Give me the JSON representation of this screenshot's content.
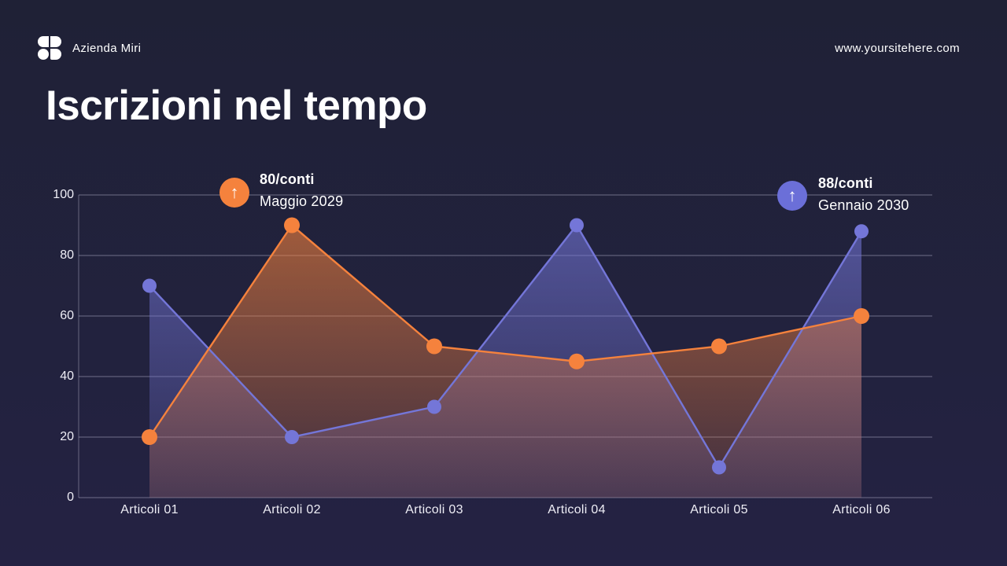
{
  "header": {
    "brand": "Azienda Miri",
    "website": "www.yoursitehere.com"
  },
  "title": "Iscrizioni nel tempo",
  "icons": {
    "arrow_up": "↑"
  },
  "colors": {
    "background": "#232240",
    "grid": "#CFCDE4",
    "text": "#FFFFFF",
    "orange": "#F5823D",
    "purple": "#7476D8"
  },
  "chart_data": {
    "type": "line",
    "title": "Iscrizioni nel tempo",
    "categories": [
      "Articoli 01",
      "Articoli 02",
      "Articoli 03",
      "Articoli 04",
      "Articoli 05",
      "Articoli 06"
    ],
    "series": [
      {
        "name": "purple-series",
        "color": "#7476D8",
        "values": [
          70,
          20,
          30,
          90,
          10,
          88
        ]
      },
      {
        "name": "orange-series",
        "color": "#F5823D",
        "values": [
          20,
          90,
          50,
          45,
          50,
          60
        ]
      }
    ],
    "ylim": [
      0,
      100
    ],
    "yticks_display": [
      "100",
      "80",
      "60",
      "40",
      "20",
      "0"
    ],
    "xlabel": "",
    "ylabel": "",
    "grid": true,
    "legend": false,
    "area_fill": true,
    "annotations": [
      {
        "value_label": "80/conti",
        "date_label": "Maggio 2029",
        "color": "#F5823D",
        "icon": "arrow-up-icon"
      },
      {
        "value_label": "88/conti",
        "date_label": "Gennaio 2030",
        "color": "#6B6FD8",
        "icon": "arrow-up-icon"
      }
    ]
  }
}
